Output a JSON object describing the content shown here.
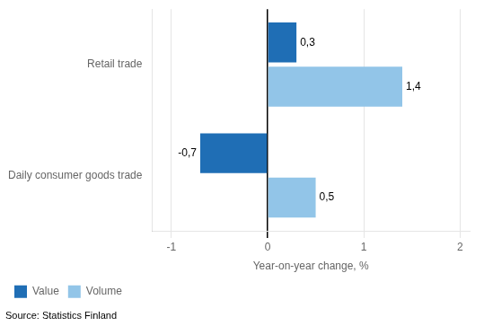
{
  "chart_data": {
    "type": "bar",
    "orientation": "horizontal",
    "categories": [
      "Retail trade",
      "Daily consumer goods trade"
    ],
    "series": [
      {
        "name": "Value",
        "color": "#1F6EB5",
        "values": [
          0.3,
          -0.7
        ],
        "value_labels": [
          "0,3",
          "-0,7"
        ]
      },
      {
        "name": "Volume",
        "color": "#92C5E8",
        "values": [
          1.4,
          0.5
        ],
        "value_labels": [
          "1,4",
          "0,5"
        ]
      }
    ],
    "xlabel": "Year-on-year change, %",
    "xlim": [
      -1.2,
      2.1
    ],
    "xticks": [
      -1,
      0,
      1,
      2
    ],
    "grid": true,
    "legend": "lower left",
    "data_labels": true,
    "source": "Source: Statistics Finland"
  }
}
